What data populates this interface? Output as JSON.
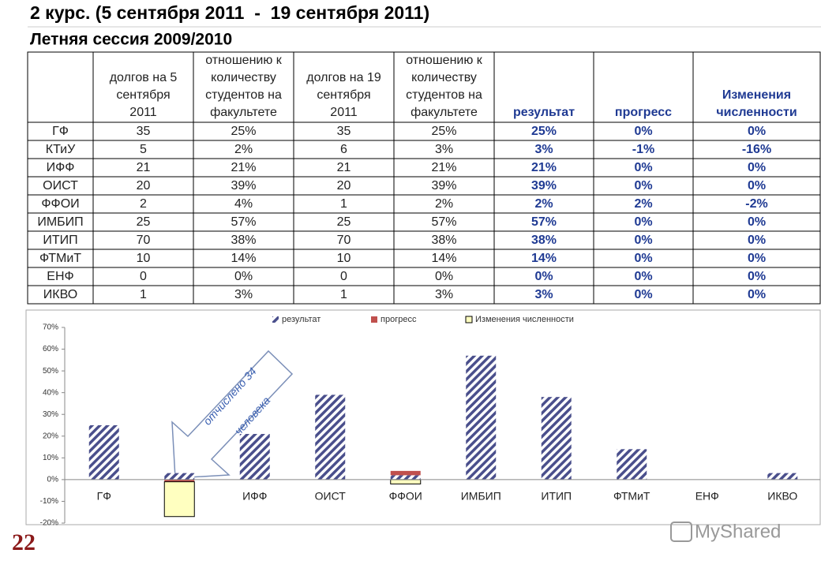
{
  "header": {
    "title": "2 курс. (5 сентября 2011  -  19 сентября 2011)",
    "subtitle": "Летняя сессия 2009/2010"
  },
  "table": {
    "columns": [
      [],
      [
        "долгов на 5",
        "сентября",
        "2011"
      ],
      [
        "отношению к",
        "количеству",
        "студентов на",
        "факультете"
      ],
      [
        "долгов на 19",
        "сентября",
        "2011"
      ],
      [
        "отношению к",
        "количеству",
        "студентов на",
        "факультете"
      ],
      [
        "результат"
      ],
      [
        "прогресс"
      ],
      [
        "Изменения",
        "численности"
      ]
    ],
    "rows": [
      [
        "ГФ",
        "35",
        "25%",
        "35",
        "25%",
        "25%",
        "0%",
        "0%"
      ],
      [
        "КТиУ",
        "5",
        "2%",
        "6",
        "3%",
        "3%",
        "-1%",
        "-16%"
      ],
      [
        "ИФФ",
        "21",
        "21%",
        "21",
        "21%",
        "21%",
        "0%",
        "0%"
      ],
      [
        "ОИСТ",
        "20",
        "39%",
        "20",
        "39%",
        "39%",
        "0%",
        "0%"
      ],
      [
        "ФФОИ",
        "2",
        "4%",
        "1",
        "2%",
        "2%",
        "2%",
        "-2%"
      ],
      [
        "ИМБИП",
        "25",
        "57%",
        "25",
        "57%",
        "57%",
        "0%",
        "0%"
      ],
      [
        "ИТИП",
        "70",
        "38%",
        "70",
        "38%",
        "38%",
        "0%",
        "0%"
      ],
      [
        "ФТМиТ",
        "10",
        "14%",
        "10",
        "14%",
        "14%",
        "0%",
        "0%"
      ],
      [
        "ЕНФ",
        "0",
        "0%",
        "0",
        "0%",
        "0%",
        "0%",
        "0%"
      ],
      [
        "ИКВО",
        "1",
        "3%",
        "1",
        "3%",
        "3%",
        "0%",
        "0%"
      ]
    ]
  },
  "chart_data": {
    "type": "bar",
    "stacked": true,
    "categories": [
      "ГФ",
      "КТиУ",
      "ИФФ",
      "ОИСТ",
      "ФФОИ",
      "ИМБИП",
      "ИТИП",
      "ФТМиТ",
      "ЕНФ",
      "ИКВО"
    ],
    "series": [
      {
        "name": "результат",
        "color": "#4a4f8c",
        "values": [
          25,
          3,
          21,
          39,
          2,
          57,
          38,
          14,
          0,
          3
        ]
      },
      {
        "name": "прогресс",
        "color": "#c0504d",
        "values": [
          0,
          -1,
          0,
          0,
          2,
          0,
          0,
          0,
          0,
          0
        ]
      },
      {
        "name": "Изменения численности",
        "color": "#ffffc0",
        "values": [
          0,
          -16,
          0,
          0,
          -2,
          0,
          0,
          0,
          0,
          0
        ]
      }
    ],
    "ylim": [
      -20,
      70
    ],
    "yticks": [
      {
        "value": -20,
        "label": "-20%"
      },
      {
        "value": -10,
        "label": "-10%"
      },
      {
        "value": 0,
        "label": "0%"
      },
      {
        "value": 10,
        "label": "10%"
      },
      {
        "value": 20,
        "label": "20%"
      },
      {
        "value": 30,
        "label": "30%"
      },
      {
        "value": 40,
        "label": "40%"
      },
      {
        "value": 50,
        "label": "50%"
      },
      {
        "value": 60,
        "label": "60%"
      },
      {
        "value": 70,
        "label": "70%"
      }
    ],
    "annotation": [
      "отчислено 34",
      "человека"
    ]
  },
  "page_number": "22",
  "watermark": "MyShared"
}
